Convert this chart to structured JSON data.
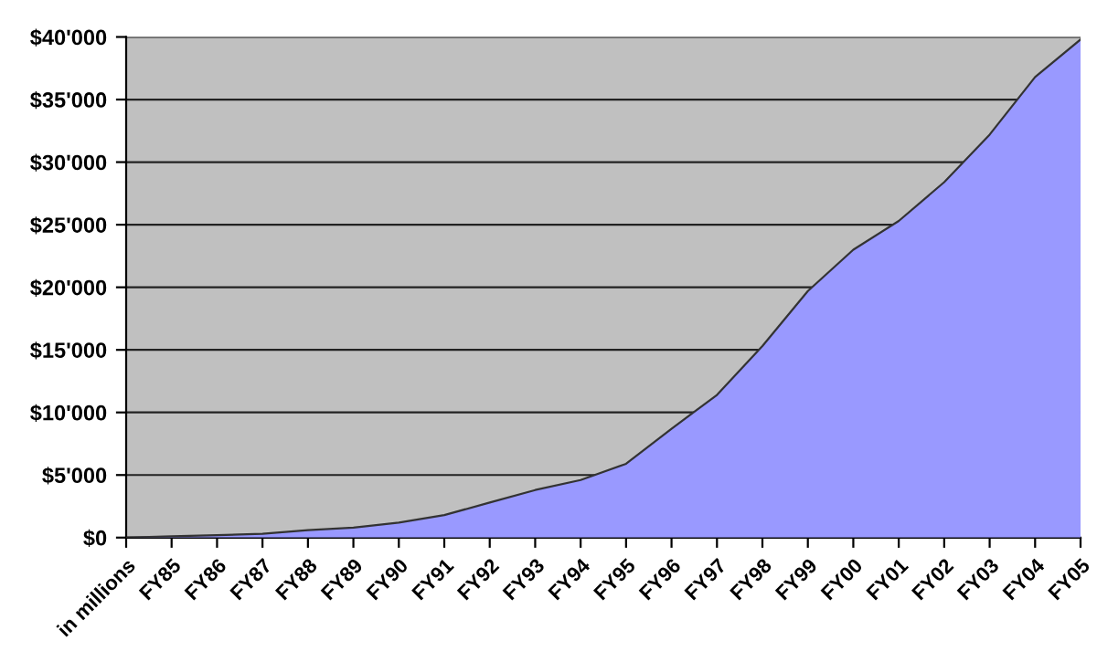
{
  "chart_data": {
    "type": "area",
    "categories": [
      "in millions",
      "FY85",
      "FY86",
      "FY87",
      "FY88",
      "FY89",
      "FY90",
      "FY91",
      "FY92",
      "FY93",
      "FY94",
      "FY95",
      "FY96",
      "FY97",
      "FY98",
      "FY99",
      "FY00",
      "FY01",
      "FY02",
      "FY03",
      "FY04",
      "FY05"
    ],
    "series": [
      {
        "color": "#9999ff",
        "values": [
          0,
          100,
          200,
          300,
          600,
          800,
          1200,
          1800,
          2800,
          3800,
          4600,
          5900,
          8700,
          11400,
          15300,
          19700,
          23000,
          25300,
          28400,
          32200,
          36800,
          39800
        ]
      }
    ],
    "ylim": [
      0,
      40000
    ],
    "yticks": [
      {
        "value": 0,
        "label": "$0"
      },
      {
        "value": 5000,
        "label": "$5'000"
      },
      {
        "value": 10000,
        "label": "$10'000"
      },
      {
        "value": 15000,
        "label": "$15'000"
      },
      {
        "value": 20000,
        "label": "$20'000"
      },
      {
        "value": 25000,
        "label": "$25'000"
      },
      {
        "value": 30000,
        "label": "$30'000"
      },
      {
        "value": 35000,
        "label": "$35'000"
      },
      {
        "value": 40000,
        "label": "$40'000"
      }
    ],
    "grid": "y"
  }
}
